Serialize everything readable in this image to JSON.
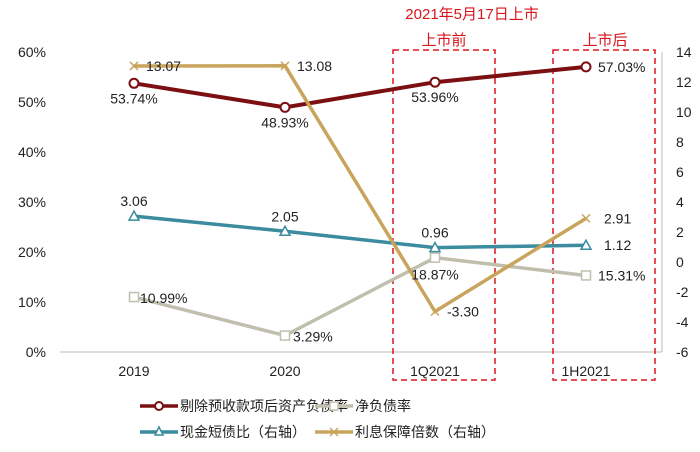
{
  "chart_data": {
    "type": "line",
    "title": "",
    "categories": [
      "2019",
      "2020",
      "1Q2021",
      "1H2021"
    ],
    "left_axis": {
      "ylim": [
        0,
        60
      ],
      "ticks": [
        "0%",
        "10%",
        "20%",
        "30%",
        "40%",
        "50%",
        "60%"
      ],
      "tick_values": [
        0,
        10,
        20,
        30,
        40,
        50,
        60
      ]
    },
    "right_axis": {
      "ylim": [
        -6,
        14
      ],
      "ticks": [
        "-6",
        "-4",
        "-2",
        "0",
        "2",
        "4",
        "6",
        "8",
        "10",
        "12",
        "14"
      ],
      "tick_values": [
        -6,
        -4,
        -2,
        0,
        2,
        4,
        6,
        8,
        10,
        12,
        14
      ]
    },
    "grid": false,
    "legend_position": "bottom",
    "series": [
      {
        "name": "剔除预收款项后资产负债率",
        "axis": "left",
        "color": "#7b0f12",
        "marker": "circle",
        "values": [
          53.74,
          48.93,
          53.96,
          57.03
        ],
        "labels": [
          "53.74%",
          "48.93%",
          "53.96%",
          "57.03%"
        ]
      },
      {
        "name": "净负债率",
        "axis": "left",
        "color": "#c0bfae",
        "marker": "square",
        "values": [
          10.99,
          3.29,
          18.87,
          15.31
        ],
        "labels": [
          "10.99%",
          "3.29%",
          "18.87%",
          "15.31%"
        ]
      },
      {
        "name": "现金短债比（右轴）",
        "axis": "right",
        "color": "#3a8c9e",
        "marker": "triangle",
        "values": [
          3.06,
          2.05,
          0.96,
          1.12
        ],
        "labels": [
          "3.06",
          "2.05",
          "0.96",
          "1.12"
        ]
      },
      {
        "name": "利息保障倍数（右轴）",
        "axis": "right",
        "color": "#c9a45c",
        "marker": "cross",
        "values": [
          13.07,
          13.08,
          -3.3,
          2.91
        ],
        "labels": [
          "13.07",
          "13.08",
          "-3.30",
          "2.91"
        ]
      }
    ],
    "annotations": {
      "listing_title": "2021年5月17日上市",
      "before_label": "上市前",
      "after_label": "上市后",
      "annotation_color": "#d9151b"
    }
  }
}
